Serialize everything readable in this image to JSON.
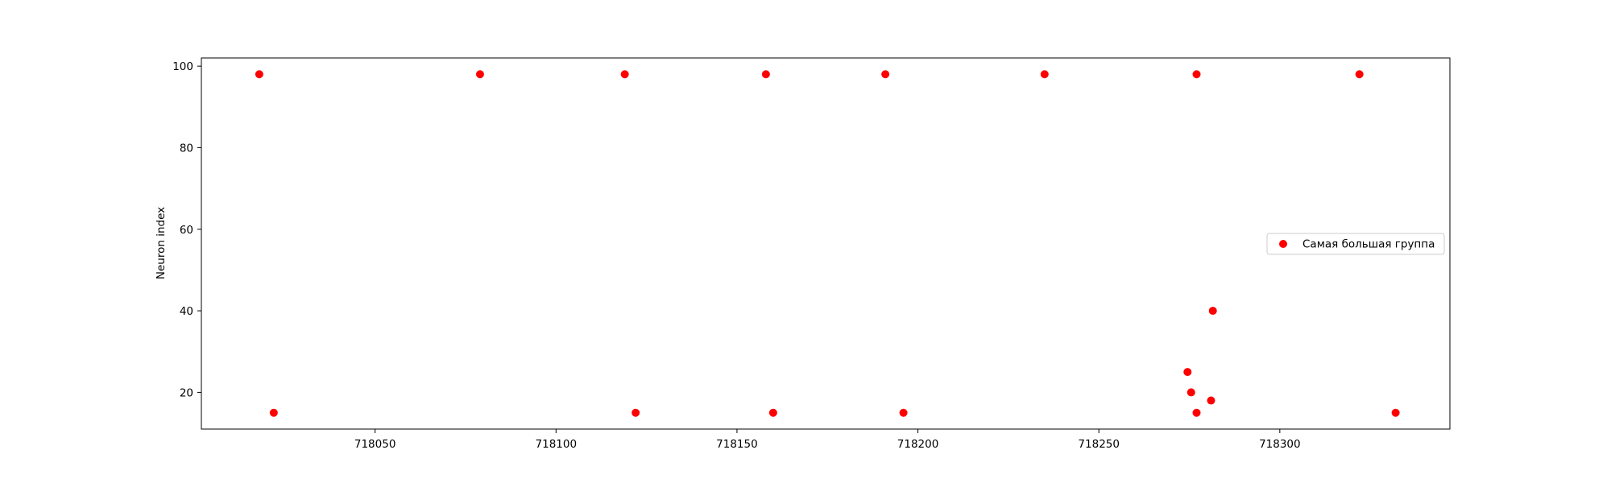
{
  "chart_data": {
    "type": "scatter",
    "title": "",
    "xlabel": "",
    "ylabel": "Neuron index",
    "xlim": [
      718002,
      718347
    ],
    "ylim": [
      11,
      102
    ],
    "xticks": [
      718050,
      718100,
      718150,
      718200,
      718250,
      718300
    ],
    "yticks": [
      20,
      40,
      60,
      80,
      100
    ],
    "grid": false,
    "legend_position": "center-right",
    "series": [
      {
        "name": "Самая большая группа",
        "color": "#ff0000",
        "marker": "circle",
        "points": [
          {
            "x": 718018,
            "y": 98
          },
          {
            "x": 718022,
            "y": 15
          },
          {
            "x": 718079,
            "y": 98
          },
          {
            "x": 718119,
            "y": 98
          },
          {
            "x": 718122,
            "y": 15
          },
          {
            "x": 718158,
            "y": 98
          },
          {
            "x": 718160,
            "y": 15
          },
          {
            "x": 718191,
            "y": 98
          },
          {
            "x": 718196,
            "y": 15
          },
          {
            "x": 718235,
            "y": 98
          },
          {
            "x": 718274.5,
            "y": 25
          },
          {
            "x": 718275.5,
            "y": 20
          },
          {
            "x": 718277,
            "y": 98
          },
          {
            "x": 718277,
            "y": 15
          },
          {
            "x": 718281,
            "y": 18
          },
          {
            "x": 718281.5,
            "y": 40
          },
          {
            "x": 718322,
            "y": 98
          },
          {
            "x": 718332,
            "y": 15
          }
        ]
      }
    ]
  }
}
